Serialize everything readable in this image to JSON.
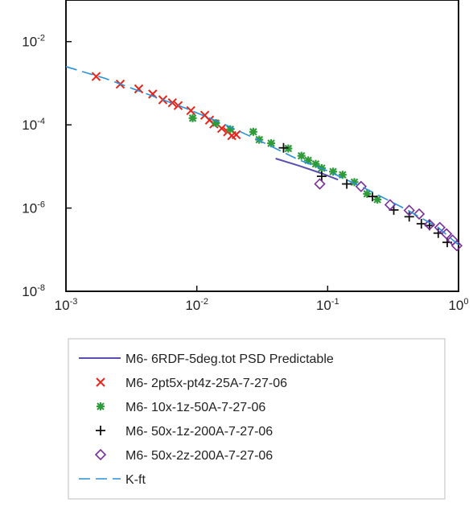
{
  "chart_data": {
    "type": "scatter",
    "xscale": "log",
    "yscale": "log",
    "xlim": [
      0.001,
      1
    ],
    "ylim": [
      1e-08,
      0.1
    ],
    "grid": false,
    "legend_position": "bottom",
    "xlabel": "",
    "ylabel": "",
    "x_ticks": [
      {
        "base": "10",
        "exp": "-3",
        "value": 0.001
      },
      {
        "base": "10",
        "exp": "-2",
        "value": 0.01
      },
      {
        "base": "10",
        "exp": "-1",
        "value": 0.1
      },
      {
        "base": "10",
        "exp": "0",
        "value": 1
      }
    ],
    "y_ticks": [
      {
        "base": "10",
        "exp": "-2",
        "value": 0.01
      },
      {
        "base": "10",
        "exp": "-4",
        "value": 0.0001
      },
      {
        "base": "10",
        "exp": "-6",
        "value": 1e-06
      },
      {
        "base": "10",
        "exp": "-8",
        "value": 1e-08
      }
    ],
    "series": [
      {
        "name": "M6- 6RDF-5deg.tot PSD Predictable",
        "kind": "line",
        "color": "#5a4fb0",
        "dash": false,
        "points": [
          [
            0.04,
            1.55e-05
          ],
          [
            0.06,
            1.05e-05
          ],
          [
            0.09,
            6.8e-06
          ],
          [
            0.12,
            4.8e-06
          ]
        ]
      },
      {
        "name": "M6- 2pt5x-pt4z-25A-7-27-06",
        "kind": "marker",
        "marker": "x",
        "color": "#e8231a",
        "points": [
          [
            0.0017,
            0.00145
          ],
          [
            0.0026,
            0.00095
          ],
          [
            0.0036,
            0.00073
          ],
          [
            0.0046,
            0.00055
          ],
          [
            0.0055,
            0.0004
          ],
          [
            0.0065,
            0.00034
          ],
          [
            0.0072,
            0.00029
          ],
          [
            0.009,
            0.00022
          ],
          [
            0.0115,
            0.00017
          ],
          [
            0.0125,
            0.00013
          ],
          [
            0.0135,
            0.000105
          ],
          [
            0.0155,
            8.2e-05
          ],
          [
            0.0172,
            6.8e-05
          ],
          [
            0.0185,
            5.5e-05
          ],
          [
            0.02,
            5.8e-05
          ]
        ]
      },
      {
        "name": "M6- 10x-1z-50A-7-27-06",
        "kind": "marker",
        "marker": "asterisk",
        "color": "#2f9a3a",
        "points": [
          [
            0.0093,
            0.000145
          ],
          [
            0.014,
            0.00011
          ],
          [
            0.018,
            7.8e-05
          ],
          [
            0.027,
            6.8e-05
          ],
          [
            0.03,
            4.4e-05
          ],
          [
            0.037,
            3.6e-05
          ],
          [
            0.05,
            2.7e-05
          ],
          [
            0.063,
            1.8e-05
          ],
          [
            0.071,
            1.4e-05
          ],
          [
            0.081,
            1.15e-05
          ],
          [
            0.09,
            9.1e-06
          ],
          [
            0.11,
            7.5e-06
          ],
          [
            0.13,
            6.3e-06
          ],
          [
            0.16,
            4.2e-06
          ],
          [
            0.2,
            2.2e-06
          ],
          [
            0.24,
            1.6e-06
          ]
        ]
      },
      {
        "name": "M6- 50x-1z-200A-7-27-06",
        "kind": "marker",
        "marker": "plus",
        "color": "#111111",
        "points": [
          [
            0.046,
            2.8e-05
          ],
          [
            0.09,
            5.8e-06
          ],
          [
            0.14,
            3.8e-06
          ],
          [
            0.22,
            1.9e-06
          ],
          [
            0.32,
            9e-07
          ],
          [
            0.42,
            6.2e-07
          ],
          [
            0.52,
            4.2e-07
          ],
          [
            0.6,
            3.8e-07
          ],
          [
            0.7,
            2.5e-07
          ],
          [
            0.82,
            1.5e-07
          ]
        ]
      },
      {
        "name": "M6- 50x-2z-200A-7-27-06",
        "kind": "marker",
        "marker": "diamond",
        "color": "#7a2e9a",
        "points": [
          [
            0.087,
            3.8e-06
          ],
          [
            0.18,
            3.3e-06
          ],
          [
            0.3,
            1.2e-06
          ],
          [
            0.42,
            8.8e-07
          ],
          [
            0.5,
            7.2e-07
          ],
          [
            0.6,
            4e-07
          ],
          [
            0.72,
            3.4e-07
          ],
          [
            0.81,
            2.4e-07
          ],
          [
            0.9,
            1.7e-07
          ],
          [
            0.97,
            1.25e-07
          ]
        ]
      },
      {
        "name": "K-ft",
        "kind": "line",
        "color": "#2a8fd8",
        "dash": true,
        "points": [
          [
            0.001,
            0.0025
          ],
          [
            0.002,
            0.0013
          ],
          [
            0.004,
            0.00058
          ],
          [
            0.008,
            0.00026
          ],
          [
            0.016,
            0.000105
          ],
          [
            0.03,
            4.2e-05
          ],
          [
            0.06,
            1.45e-05
          ],
          [
            0.1,
            7.8e-06
          ],
          [
            0.2,
            2.8e-06
          ],
          [
            0.4,
            9.2e-07
          ],
          [
            0.7,
            3.4e-07
          ],
          [
            1.0,
            1.3e-07
          ]
        ]
      }
    ]
  }
}
